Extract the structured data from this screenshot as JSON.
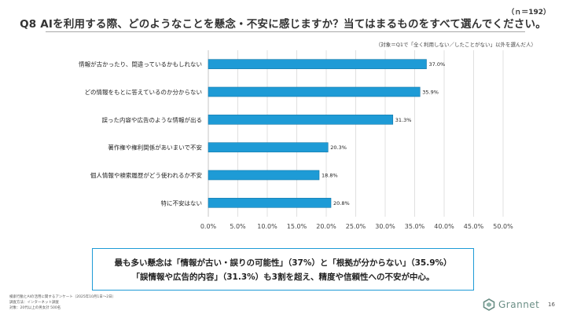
{
  "header": {
    "n": "（ｎ＝192）",
    "title": "Q8 AIを利用する際、どのようなことを懸念・不安に感じますか？当てはまるものをすべて選んでください。",
    "note": "（対象＝Q1で「全く利用しない／したことがない」以外を選んだ人）"
  },
  "chart_data": {
    "type": "bar",
    "orientation": "horizontal",
    "categories": [
      "情報が古かったり、間違っているかもしれない",
      "どの情報をもとに答えているのか分からない",
      "誤った内容や広告のような情報が出る",
      "著作権や権利関係があいまいで不安",
      "個人情報や検索履歴がどう使われるか不安",
      "特に不安はない"
    ],
    "values": [
      37.0,
      35.9,
      31.3,
      20.3,
      18.8,
      20.8
    ],
    "value_labels": [
      "37.0%",
      "35.9%",
      "31.3%",
      "20.3%",
      "18.8%",
      "20.8%"
    ],
    "xlim": [
      0,
      50
    ],
    "xticks": [
      "0.0%",
      "5.0%",
      "10.0%",
      "15.0%",
      "20.0%",
      "25.0%",
      "30.0%",
      "35.0%",
      "40.0%",
      "45.0%",
      "50.0%"
    ],
    "grid": true,
    "bar_color": "#1e9bd6",
    "title": "",
    "xlabel": "",
    "ylabel": ""
  },
  "summary": {
    "line1": "最も多い懸念は「情報が古い・誤りの可能性」（37%）と「根拠が分からない」（35.9%）",
    "line2": "「誤情報や広告的内容」（31.3%）も3割を超え、精度や信頼性への不安が中心。"
  },
  "footnotes": [
    "検索行動とAIの活用に関するアンケート（2025年10月1日〜2日）",
    "調査方法：インターネット調査",
    "対象：20代以上の男女計 500名"
  ],
  "brand": {
    "name": "Grannet",
    "accent": "#1e9bd6"
  },
  "page_number": "16"
}
